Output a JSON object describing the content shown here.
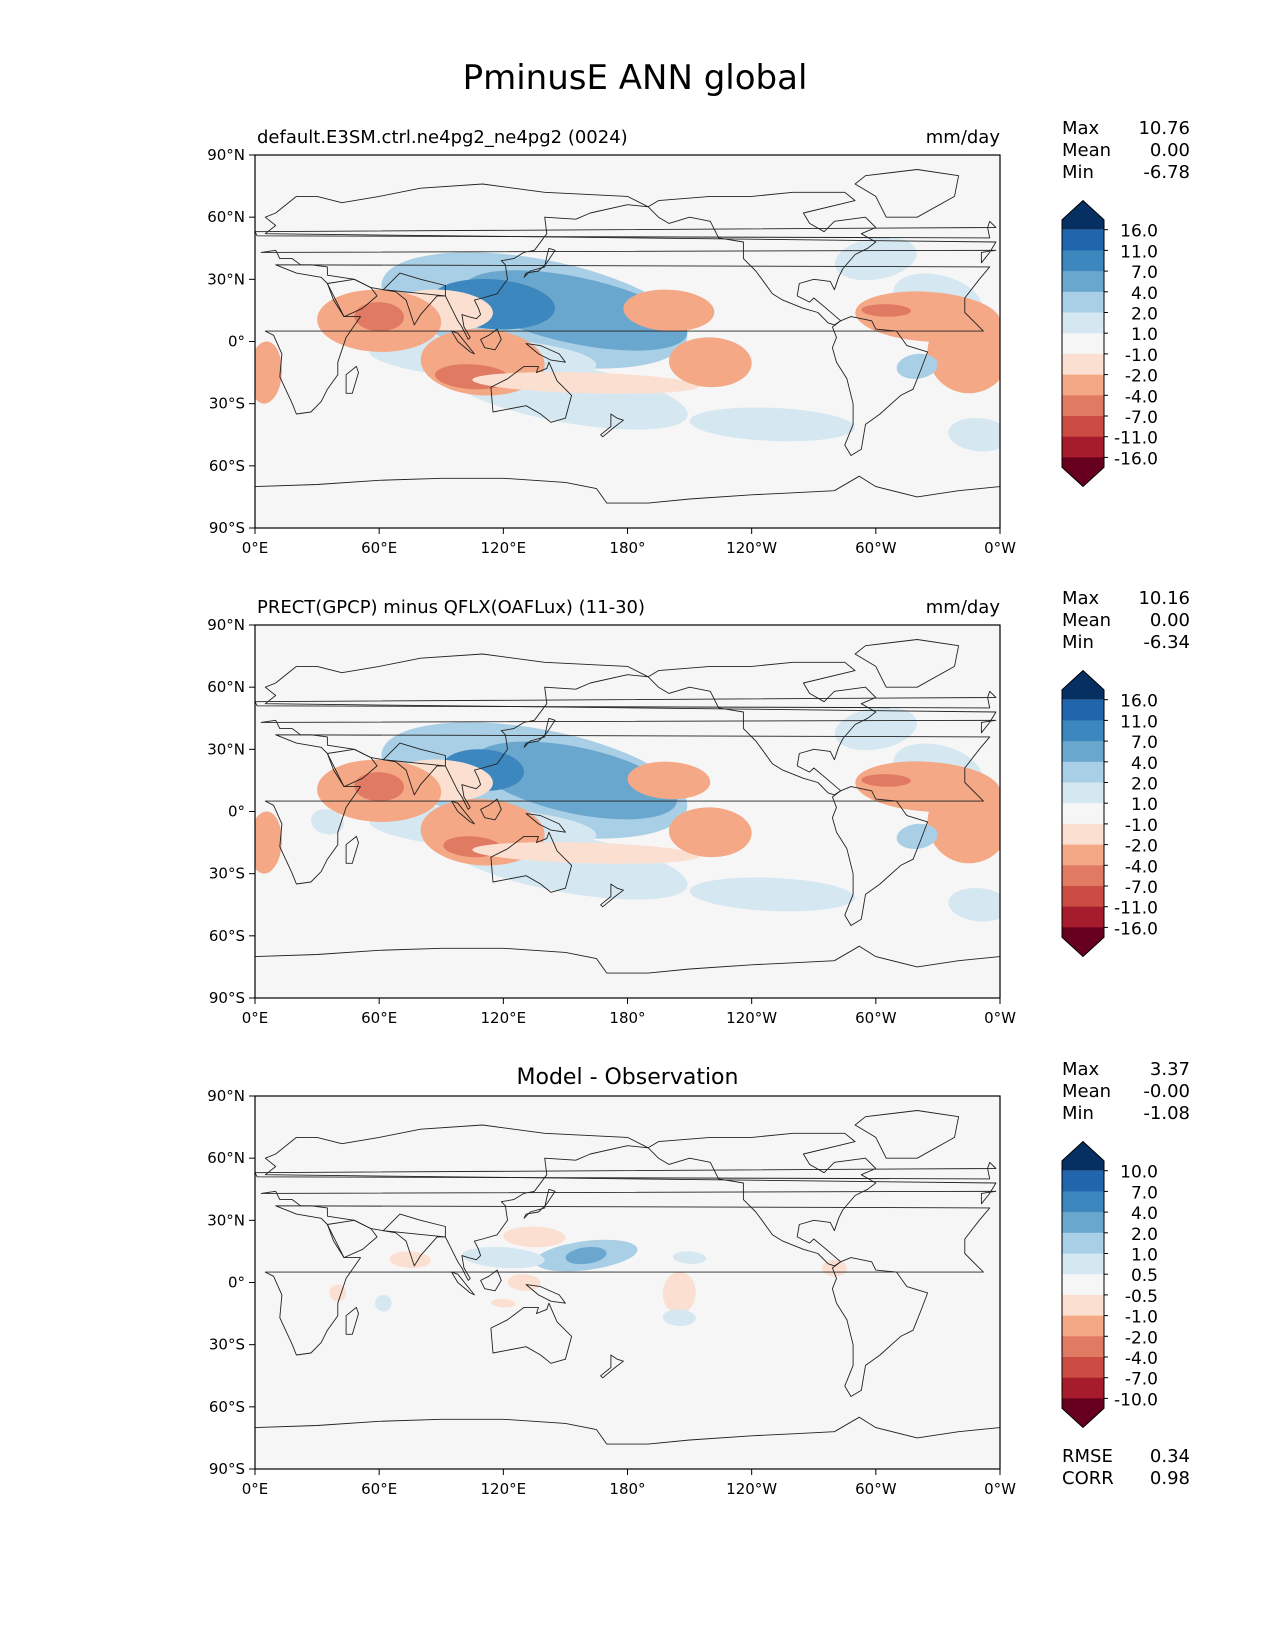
{
  "title": "PminusE ANN global",
  "panels": [
    {
      "left_title": "default.E3SM.ctrl.ne4pg2_ne4pg2 (0024)",
      "center_title": "",
      "units": "mm/day",
      "stats": {
        "max_label": "Max",
        "max": "10.76",
        "mean_label": "Mean",
        "mean": "0.00",
        "min_label": "Min",
        "min": "-6.78"
      },
      "colorbar_labels": [
        "16.0",
        "11.0",
        "7.0",
        "4.0",
        "2.0",
        "1.0",
        "-1.0",
        "-2.0",
        "-4.0",
        "-7.0",
        "-11.0",
        "-16.0"
      ],
      "fields": [
        {
          "lon": [
            330,
            175
          ],
          "lat": [
            20,
            30
          ],
          "r": [
            22,
            12
          ],
          "level": 1
        },
        {
          "lon": [
            300,
            240
          ],
          "lat": [
            40,
            45
          ],
          "r": [
            20,
            10
          ],
          "level": 1
        },
        {
          "lon": [
            135,
            130
          ],
          "lat": [
            15,
            25
          ],
          "r": [
            75,
            25
          ],
          "level": 2
        },
        {
          "lon": [
            150,
            130
          ],
          "lat": [
            -25,
            25
          ],
          "r": [
            60,
            14
          ],
          "level": 1
        },
        {
          "lon": [
            155,
            150
          ],
          "lat": [
            15,
            10
          ],
          "r": [
            55,
            16
          ],
          "level": 3
        },
        {
          "lon": [
            115,
            55
          ],
          "lat": [
            18,
            11
          ],
          "r": [
            30,
            12
          ],
          "level": 4
        },
        {
          "lon": [
            110,
            45
          ],
          "lat": [
            -8,
            10
          ],
          "r": [
            55,
            10
          ],
          "level": 1
        },
        {
          "lon": [
            90,
            40
          ],
          "lat": [
            15,
            60
          ],
          "r": [
            25,
            10
          ],
          "level": -1
        },
        {
          "lon": [
            60,
            20
          ],
          "lat": [
            10,
            12
          ],
          "r": [
            30,
            15
          ],
          "level": -2
        },
        {
          "lon": [
            60,
            20
          ],
          "lat": [
            12,
            14
          ],
          "r": [
            12,
            7
          ],
          "level": -3
        },
        {
          "lon": [
            110,
            40
          ],
          "lat": [
            -10,
            20
          ],
          "r": [
            30,
            16
          ],
          "level": -2
        },
        {
          "lon": [
            105,
            40
          ],
          "lat": [
            -17,
            22
          ],
          "r": [
            18,
            6
          ],
          "level": -3
        },
        {
          "lon": [
            160,
            20
          ],
          "lat": [
            -20,
            40
          ],
          "r": [
            55,
            5
          ],
          "level": -1
        },
        {
          "lon": [
            200,
            35
          ],
          "lat": [
            15,
            30
          ],
          "r": [
            22,
            10
          ],
          "level": -2
        },
        {
          "lon": [
            220,
            25
          ],
          "lat": [
            -10,
            30
          ],
          "r": [
            20,
            12
          ],
          "level": -2
        },
        {
          "lon": [
            325,
            45
          ],
          "lat": [
            12,
            15
          ],
          "r": [
            35,
            12
          ],
          "level": -2
        },
        {
          "lon": [
            345,
            50
          ],
          "lat": [
            -5,
            20
          ],
          "r": [
            20,
            20
          ],
          "level": -2
        },
        {
          "lon": [
            305,
            15
          ],
          "lat": [
            15,
            5
          ],
          "r": [
            12,
            3
          ],
          "level": -3
        },
        {
          "lon": [
            320,
            270
          ],
          "lat": [
            -12,
            35
          ],
          "r": [
            10,
            6
          ],
          "level": 2
        },
        {
          "lon": [
            250,
            30
          ],
          "lat": [
            -40,
            40
          ],
          "r": [
            40,
            8
          ],
          "level": 1
        },
        {
          "lon": [
            350,
            70
          ],
          "lat": [
            -45,
            50
          ],
          "r": [
            15,
            8
          ],
          "level": 1
        },
        {
          "lon": [
            5,
            40
          ],
          "lat": [
            -15,
            50
          ],
          "r": [
            8,
            15
          ],
          "level": -2
        }
      ]
    },
    {
      "left_title": "PRECT(GPCP) minus QFLX(OAFLux) (11-30)",
      "center_title": "",
      "units": "mm/day",
      "stats": {
        "max_label": "Max",
        "max": "10.16",
        "mean_label": "Mean",
        "mean": "0.00",
        "min_label": "Min",
        "min": "-6.34"
      },
      "colorbar_labels": [
        "16.0",
        "11.0",
        "7.0",
        "4.0",
        "2.0",
        "1.0",
        "-1.0",
        "-2.0",
        "-4.0",
        "-7.0",
        "-11.0",
        "-16.0"
      ],
      "fields": [
        {
          "lon": [
            330,
            175
          ],
          "lat": [
            20,
            30
          ],
          "r": [
            22,
            12
          ],
          "level": 1
        },
        {
          "lon": [
            300,
            240
          ],
          "lat": [
            40,
            50
          ],
          "r": [
            20,
            10
          ],
          "level": 1
        },
        {
          "lon": [
            135,
            130
          ],
          "lat": [
            15,
            25
          ],
          "r": [
            75,
            25
          ],
          "level": 2
        },
        {
          "lon": [
            150,
            130
          ],
          "lat": [
            -25,
            25
          ],
          "r": [
            60,
            14
          ],
          "level": 1
        },
        {
          "lon": [
            155,
            150
          ],
          "lat": [
            15,
            10
          ],
          "r": [
            50,
            16
          ],
          "level": 3
        },
        {
          "lon": [
            110,
            45
          ],
          "lat": [
            20,
            12
          ],
          "r": [
            20,
            10
          ],
          "level": 4
        },
        {
          "lon": [
            110,
            45
          ],
          "lat": [
            -8,
            10
          ],
          "r": [
            55,
            10
          ],
          "level": 1
        },
        {
          "lon": [
            90,
            40
          ],
          "lat": [
            15,
            60
          ],
          "r": [
            25,
            10
          ],
          "level": -1
        },
        {
          "lon": [
            60,
            20
          ],
          "lat": [
            10,
            12
          ],
          "r": [
            30,
            15
          ],
          "level": -2
        },
        {
          "lon": [
            60,
            20
          ],
          "lat": [
            12,
            14
          ],
          "r": [
            12,
            7
          ],
          "level": -3
        },
        {
          "lon": [
            110,
            40
          ],
          "lat": [
            -10,
            20
          ],
          "r": [
            30,
            16
          ],
          "level": -2
        },
        {
          "lon": [
            105,
            40
          ],
          "lat": [
            -17,
            22
          ],
          "r": [
            14,
            5
          ],
          "level": -3
        },
        {
          "lon": [
            160,
            20
          ],
          "lat": [
            -20,
            40
          ],
          "r": [
            55,
            5
          ],
          "level": -1
        },
        {
          "lon": [
            200,
            35
          ],
          "lat": [
            15,
            30
          ],
          "r": [
            20,
            9
          ],
          "level": -2
        },
        {
          "lon": [
            220,
            25
          ],
          "lat": [
            -10,
            30
          ],
          "r": [
            20,
            12
          ],
          "level": -2
        },
        {
          "lon": [
            325,
            45
          ],
          "lat": [
            12,
            15
          ],
          "r": [
            35,
            12
          ],
          "level": -2
        },
        {
          "lon": [
            345,
            50
          ],
          "lat": [
            -5,
            20
          ],
          "r": [
            20,
            20
          ],
          "level": -2
        },
        {
          "lon": [
            305,
            15
          ],
          "lat": [
            15,
            5
          ],
          "r": [
            12,
            3
          ],
          "level": -3
        },
        {
          "lon": [
            320,
            270
          ],
          "lat": [
            -12,
            35
          ],
          "r": [
            10,
            6
          ],
          "level": 2
        },
        {
          "lon": [
            250,
            30
          ],
          "lat": [
            -40,
            40
          ],
          "r": [
            40,
            8
          ],
          "level": 1
        },
        {
          "lon": [
            350,
            70
          ],
          "lat": [
            -45,
            50
          ],
          "r": [
            15,
            8
          ],
          "level": 1
        },
        {
          "lon": [
            5,
            40
          ],
          "lat": [
            -15,
            50
          ],
          "r": [
            8,
            15
          ],
          "level": -2
        },
        {
          "lon": [
            35,
            175
          ],
          "lat": [
            -5,
            20
          ],
          "r": [
            8,
            6
          ],
          "level": 1
        }
      ]
    },
    {
      "left_title": "",
      "center_title": "Model - Observation",
      "units": "",
      "stats": {
        "max_label": "Max",
        "max": "3.37",
        "mean_label": "Mean",
        "mean": "-0.00",
        "min_label": "Min",
        "min": "-1.08"
      },
      "colorbar_labels": [
        "10.0",
        "7.0",
        "4.0",
        "2.0",
        "1.0",
        "0.5",
        "-0.5",
        "-1.0",
        "-2.0",
        "-4.0",
        "-7.0",
        "-10.0"
      ],
      "extra_stats": {
        "rmse_label": "RMSE",
        "rmse": "0.34",
        "corr_label": "CORR",
        "corr": "0.98"
      },
      "fields": [
        {
          "lon": [
            160,
            270
          ],
          "lat": [
            13,
            10
          ],
          "r": [
            25,
            7
          ],
          "level": 2
        },
        {
          "lon": [
            160,
            270
          ],
          "lat": [
            13,
            10
          ],
          "r": [
            10,
            4
          ],
          "level": 3
        },
        {
          "lon": [
            120,
            45
          ],
          "lat": [
            12,
            10
          ],
          "r": [
            20,
            5
          ],
          "level": 1
        },
        {
          "lon": [
            210,
            40
          ],
          "lat": [
            12,
            20
          ],
          "r": [
            8,
            3
          ],
          "level": 1
        },
        {
          "lon": [
            135,
            20
          ],
          "lat": [
            22,
            35
          ],
          "r": [
            15,
            5
          ],
          "level": -1
        },
        {
          "lon": [
            75,
            35
          ],
          "lat": [
            11,
            20
          ],
          "r": [
            10,
            4
          ],
          "level": -1
        },
        {
          "lon": [
            205,
            35
          ],
          "lat": [
            -5,
            20
          ],
          "r": [
            8,
            10
          ],
          "level": -1
        },
        {
          "lon": [
            130,
            40
          ],
          "lat": [
            0,
            20
          ],
          "r": [
            8,
            4
          ],
          "level": -1
        },
        {
          "lon": [
            120,
            40
          ],
          "lat": [
            -10,
            20
          ],
          "r": [
            6,
            2
          ],
          "level": -1
        },
        {
          "lon": [
            40,
            30
          ],
          "lat": [
            -5,
            20
          ],
          "r": [
            4,
            4
          ],
          "level": -1
        },
        {
          "lon": [
            280,
            30
          ],
          "lat": [
            7,
            20
          ],
          "r": [
            6,
            4
          ],
          "level": -1
        },
        {
          "lon": [
            205,
            30
          ],
          "lat": [
            -17,
            20
          ],
          "r": [
            8,
            4
          ],
          "level": 1
        },
        {
          "lon": [
            62,
            30
          ],
          "lat": [
            -10,
            20
          ],
          "r": [
            4,
            4
          ],
          "level": 1
        }
      ]
    }
  ],
  "xticks": [
    "0°E",
    "60°E",
    "120°E",
    "180°",
    "120°W",
    "60°W",
    "0°W"
  ],
  "yticks": [
    "90°N",
    "60°N",
    "30°N",
    "0°",
    "30°S",
    "60°S",
    "90°S"
  ],
  "colors": {
    "pos": [
      "#d5e7f1",
      "#a8cfe5",
      "#6aa7cf",
      "#3d87bf",
      "#2166ac",
      "#053061"
    ],
    "neg": [
      "#fbe0d1",
      "#f4a886",
      "#e07a62",
      "#cb4c43",
      "#a61c2c",
      "#67001f"
    ],
    "zero": "#f6f6f6"
  }
}
